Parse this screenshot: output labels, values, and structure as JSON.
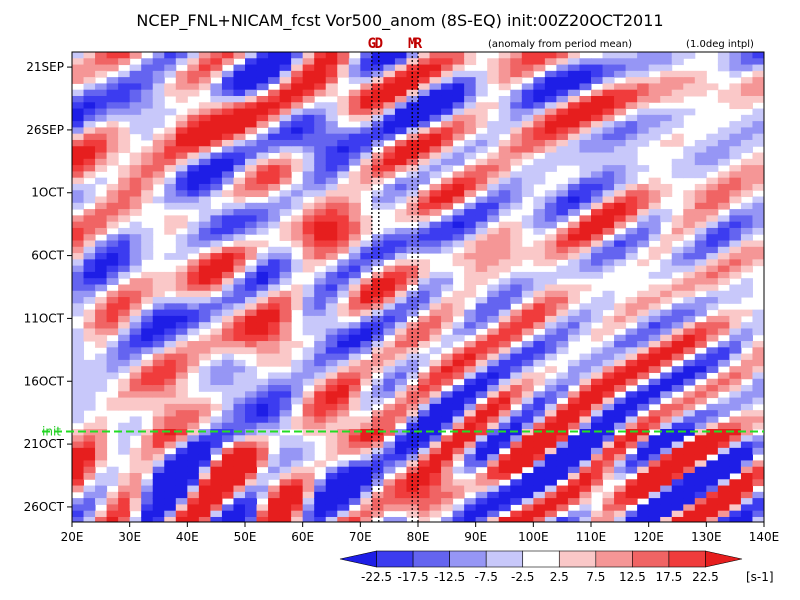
{
  "chart_data": {
    "type": "heatmap",
    "title": "NCEP_FNL+NICAM_fcst Vor500_anom (8S-EQ) init:00Z20OCT2011",
    "subtitle_left": "(anomaly from period mean)",
    "subtitle_right": "(1.0deg intpl)",
    "x_ticks": [
      "20E",
      "30E",
      "40E",
      "50E",
      "60E",
      "70E",
      "80E",
      "90E",
      "100E",
      "110E",
      "120E",
      "130E",
      "140E"
    ],
    "x_range": [
      20,
      140
    ],
    "y_ticks": [
      "21SEP",
      "26SEP",
      "1OCT",
      "6OCT",
      "11OCT",
      "16OCT",
      "21OCT",
      "26OCT"
    ],
    "y_tick_days": [
      0,
      5,
      10,
      15,
      20,
      25,
      30,
      35
    ],
    "y_range_days": [
      -1.2,
      36.2
    ],
    "markers": [
      {
        "label": "G",
        "lon": 72
      },
      {
        "label": "D",
        "lon": 73.2
      },
      {
        "label": "M",
        "lon": 79
      },
      {
        "label": "R",
        "lon": 80
      }
    ],
    "init_label": "init",
    "init_day": 29,
    "colorbar": {
      "levels": [
        "-22.5",
        "-17.5",
        "-12.5",
        "-7.5",
        "-2.5",
        "2.5",
        "7.5",
        "12.5",
        "17.5",
        "22.5"
      ],
      "unit": "[s-1]",
      "colors": [
        "#1e1ee6",
        "#3c3cf0",
        "#6464f0",
        "#9696f5",
        "#c8c8fa",
        "#ffffff",
        "#fac8c8",
        "#f59696",
        "#f06464",
        "#f03c3c",
        "#e61e1e"
      ]
    },
    "init_color": "#22dd22"
  }
}
